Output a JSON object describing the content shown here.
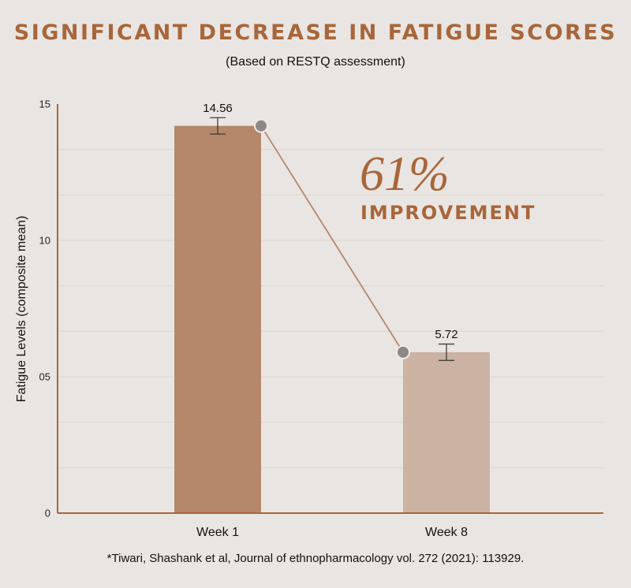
{
  "header": {
    "title": "SIGNIFICANT DECREASE IN FATIGUE SCORES",
    "subtitle": "(Based on RESTQ assessment)"
  },
  "callout": {
    "percent": "61%",
    "label": "IMPROVEMENT"
  },
  "footnote": "*Tiwari, Shashank et al, Journal of ethnopharmacology vol. 272 (2021): 113929.",
  "colors": {
    "background": "#e9e5e2",
    "accent": "#a8663a",
    "bar_week1": "#b5876a",
    "bar_week8": "#cbb2a3",
    "gridline": "#e0d5cc",
    "marker": "#8c8885",
    "connector": "#b5876a"
  },
  "chart_data": {
    "type": "bar",
    "title": "SIGNIFICANT DECREASE IN FATIGUE SCORES",
    "subtitle": "(Based on RESTQ assessment)",
    "xlabel": "",
    "ylabel": "Fatigue Levels (composite mean)",
    "categories": [
      "Week 1",
      "Week 8"
    ],
    "values": [
      14.56,
      5.72
    ],
    "bar_heights_plotted": [
      14.2,
      5.9
    ],
    "error_bars": [
      {
        "low": 13.9,
        "high": 14.5
      },
      {
        "low": 5.6,
        "high": 6.2
      }
    ],
    "data_labels": [
      "14.56",
      "5.72"
    ],
    "ylim": [
      0,
      15
    ],
    "yticks": [
      0,
      5,
      10,
      15
    ],
    "ytick_labels": [
      "0",
      "05",
      "10",
      "15"
    ],
    "grid": true,
    "grid_step": 1.667,
    "annotations": [
      "61%",
      "IMPROVEMENT"
    ],
    "connector_line": true
  }
}
